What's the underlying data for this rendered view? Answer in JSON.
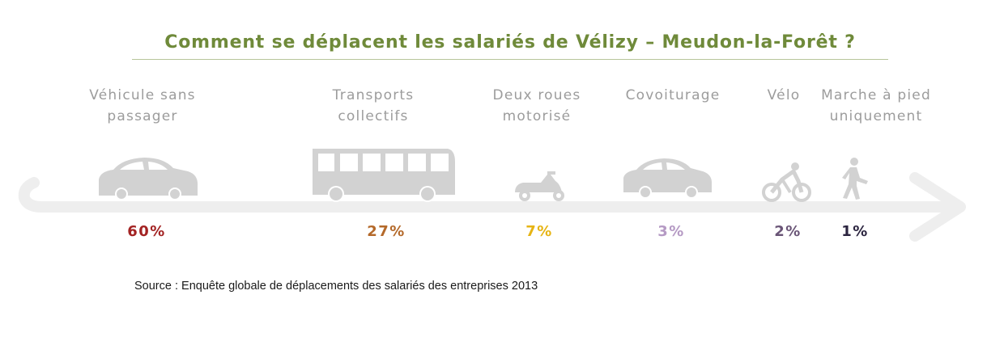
{
  "chart_data": {
    "type": "bar",
    "title": "Comment se déplacent les salariés de Vélizy – Meudon-la-Forêt ?",
    "categories": [
      "Véhicule sans passager",
      "Transports collectifs",
      "Deux roues motorisé",
      "Covoiturage",
      "Vélo",
      "Marche à pied uniquement"
    ],
    "labels": [
      "Véhicule sans\npassager",
      "Transports\ncollectifs",
      "Deux roues\nmotorisé",
      "Covoiturage",
      "Vélo",
      "Marche à pied\nuniquement"
    ],
    "values": [
      60,
      27,
      7,
      3,
      2,
      1
    ],
    "value_labels": [
      "60%",
      "27%",
      "7%",
      "3%",
      "2%",
      "1%"
    ],
    "value_colors": [
      "#a32323",
      "#b4692a",
      "#e6b414",
      "#b59ac4",
      "#6a5577",
      "#2c2540"
    ],
    "icons": [
      "car-icon",
      "bus-icon",
      "scooter-icon",
      "carpool-icon",
      "bicycle-icon",
      "pedestrian-icon"
    ],
    "unit": "%"
  },
  "source": "Source : Enquête globale de déplacements des salariés des entreprises  2013",
  "colors": {
    "title": "#6f8a3a",
    "labels": "#9c9c9c",
    "icons": "#d2d2d2",
    "road": "#eeeeee"
  }
}
